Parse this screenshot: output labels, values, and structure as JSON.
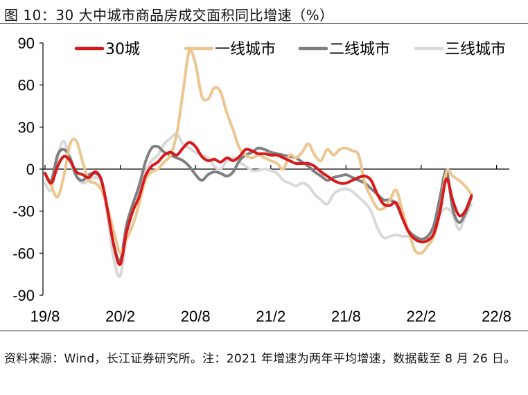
{
  "title": "图 10：30 大中城市商品房成交面积同比增速（%）",
  "source": "资料来源：Wind，长江证券研究所。注：2021 年增速为两年平均增速，数据截至 8 月 26 日。",
  "chart_data": {
    "type": "line",
    "title": "图 10：30 大中城市商品房成交面积同比增速（%）",
    "xlabel": "",
    "ylabel": "",
    "ylim": [
      -90,
      90
    ],
    "yticks": [
      "90",
      "60",
      "30",
      "0",
      "-30",
      "-60",
      "-90"
    ],
    "ytick_values": [
      90,
      60,
      30,
      0,
      -30,
      -60,
      -90
    ],
    "xticks": [
      "19/8",
      "20/2",
      "20/8",
      "21/2",
      "21/8",
      "22/2",
      "22/8"
    ],
    "x_start": "2019-08",
    "x_end": "2022-08",
    "legend_position": "top",
    "grid": false,
    "series": [
      {
        "name": "30城",
        "color": "#d7191c",
        "values": [
          [
            "2019-08",
            -3
          ],
          [
            "2019-08-15",
            -10
          ],
          [
            "2019-09",
            2
          ],
          [
            "2019-09-15",
            9
          ],
          [
            "2019-10",
            6
          ],
          [
            "2019-10-15",
            -2
          ],
          [
            "2019-11",
            -4
          ],
          [
            "2019-11-15",
            -6
          ],
          [
            "2019-12",
            -2
          ],
          [
            "2019-12-15",
            -8
          ],
          [
            "2020-01",
            -30
          ],
          [
            "2020-01-15",
            -55
          ],
          [
            "2020-02",
            -68
          ],
          [
            "2020-02-15",
            -45
          ],
          [
            "2020-03",
            -30
          ],
          [
            "2020-03-15",
            -20
          ],
          [
            "2020-04",
            -5
          ],
          [
            "2020-04-15",
            2
          ],
          [
            "2020-05",
            5
          ],
          [
            "2020-05-15",
            10
          ],
          [
            "2020-06",
            12
          ],
          [
            "2020-06-15",
            10
          ],
          [
            "2020-07",
            15
          ],
          [
            "2020-07-15",
            19
          ],
          [
            "2020-08",
            16
          ],
          [
            "2020-08-15",
            9
          ],
          [
            "2020-09",
            6
          ],
          [
            "2020-09-15",
            7
          ],
          [
            "2020-10",
            5
          ],
          [
            "2020-10-15",
            8
          ],
          [
            "2020-11",
            6
          ],
          [
            "2020-11-15",
            9
          ],
          [
            "2020-12",
            14
          ],
          [
            "2020-12-15",
            13
          ],
          [
            "2021-01",
            11
          ],
          [
            "2021-01-15",
            11
          ],
          [
            "2021-02",
            10
          ],
          [
            "2021-02-15",
            10
          ],
          [
            "2021-03",
            8
          ],
          [
            "2021-03-15",
            6
          ],
          [
            "2021-04",
            4
          ],
          [
            "2021-04-15",
            4
          ],
          [
            "2021-05",
            4
          ],
          [
            "2021-05-15",
            2
          ],
          [
            "2021-06",
            -2
          ],
          [
            "2021-06-15",
            -5
          ],
          [
            "2021-07",
            -8
          ],
          [
            "2021-07-15",
            -10
          ],
          [
            "2021-08",
            -10
          ],
          [
            "2021-08-15",
            -8
          ],
          [
            "2021-09",
            -6
          ],
          [
            "2021-09-15",
            -5
          ],
          [
            "2021-10",
            -8
          ],
          [
            "2021-10-15",
            -18
          ],
          [
            "2021-11",
            -25
          ],
          [
            "2021-11-15",
            -26
          ],
          [
            "2021-12",
            -24
          ],
          [
            "2021-12-15",
            -35
          ],
          [
            "2022-01",
            -45
          ],
          [
            "2022-01-15",
            -50
          ],
          [
            "2022-02",
            -52
          ],
          [
            "2022-02-15",
            -51
          ],
          [
            "2022-03",
            -46
          ],
          [
            "2022-03-15",
            -30
          ],
          [
            "2022-04",
            -7
          ],
          [
            "2022-04-15",
            -22
          ],
          [
            "2022-05",
            -33
          ],
          [
            "2022-05-15",
            -30
          ],
          [
            "2022-06",
            -19
          ]
        ]
      },
      {
        "name": "一线城市",
        "color": "#ecc58f",
        "values": [
          [
            "2019-08",
            -3
          ],
          [
            "2019-08-15",
            -12
          ],
          [
            "2019-09",
            -20
          ],
          [
            "2019-09-15",
            -5
          ],
          [
            "2019-10",
            18
          ],
          [
            "2019-10-15",
            20
          ],
          [
            "2019-11",
            5
          ],
          [
            "2019-11-15",
            -8
          ],
          [
            "2019-12",
            -10
          ],
          [
            "2019-12-15",
            -15
          ],
          [
            "2020-01",
            -28
          ],
          [
            "2020-01-15",
            -45
          ],
          [
            "2020-02",
            -60
          ],
          [
            "2020-02-15",
            -50
          ],
          [
            "2020-03",
            -40
          ],
          [
            "2020-03-15",
            -25
          ],
          [
            "2020-04",
            -8
          ],
          [
            "2020-04-15",
            -2
          ],
          [
            "2020-05",
            0
          ],
          [
            "2020-05-15",
            5
          ],
          [
            "2020-06",
            10
          ],
          [
            "2020-06-15",
            25
          ],
          [
            "2020-07",
            55
          ],
          [
            "2020-07-15",
            84
          ],
          [
            "2020-08",
            75
          ],
          [
            "2020-08-15",
            52
          ],
          [
            "2020-09",
            50
          ],
          [
            "2020-09-15",
            58
          ],
          [
            "2020-10",
            55
          ],
          [
            "2020-10-15",
            40
          ],
          [
            "2020-11",
            28
          ],
          [
            "2020-11-15",
            15
          ],
          [
            "2020-12",
            10
          ],
          [
            "2020-12-15",
            8
          ],
          [
            "2021-01",
            10
          ],
          [
            "2021-01-15",
            8
          ],
          [
            "2021-02",
            6
          ],
          [
            "2021-02-15",
            4
          ],
          [
            "2021-03",
            0
          ],
          [
            "2021-03-15",
            10
          ],
          [
            "2021-04",
            8
          ],
          [
            "2021-04-15",
            12
          ],
          [
            "2021-05",
            18
          ],
          [
            "2021-05-15",
            10
          ],
          [
            "2021-06",
            6
          ],
          [
            "2021-06-15",
            14
          ],
          [
            "2021-07",
            10
          ],
          [
            "2021-07-15",
            14
          ],
          [
            "2021-08",
            15
          ],
          [
            "2021-08-15",
            13
          ],
          [
            "2021-09",
            10
          ],
          [
            "2021-09-15",
            -10
          ],
          [
            "2021-10",
            -20
          ],
          [
            "2021-10-15",
            -28
          ],
          [
            "2021-11",
            -28
          ],
          [
            "2021-11-15",
            -22
          ],
          [
            "2021-12",
            -15
          ],
          [
            "2021-12-15",
            -30
          ],
          [
            "2022-01",
            -45
          ],
          [
            "2022-01-15",
            -58
          ],
          [
            "2022-02",
            -60
          ],
          [
            "2022-02-15",
            -55
          ],
          [
            "2022-03",
            -48
          ],
          [
            "2022-03-15",
            -30
          ],
          [
            "2022-04",
            -2
          ],
          [
            "2022-04-15",
            -5
          ],
          [
            "2022-05",
            -8
          ],
          [
            "2022-05-15",
            -12
          ],
          [
            "2022-06",
            -18
          ]
        ]
      },
      {
        "name": "二线城市",
        "color": "#7f7f7f",
        "values": [
          [
            "2019-08",
            -3
          ],
          [
            "2019-08-15",
            -8
          ],
          [
            "2019-09",
            10
          ],
          [
            "2019-09-15",
            14
          ],
          [
            "2019-10",
            8
          ],
          [
            "2019-10-15",
            -5
          ],
          [
            "2019-11",
            -8
          ],
          [
            "2019-11-15",
            -4
          ],
          [
            "2019-12",
            -3
          ],
          [
            "2019-12-15",
            -8
          ],
          [
            "2020-01",
            -30
          ],
          [
            "2020-01-15",
            -55
          ],
          [
            "2020-02",
            -65
          ],
          [
            "2020-02-15",
            -40
          ],
          [
            "2020-03",
            -25
          ],
          [
            "2020-03-15",
            -12
          ],
          [
            "2020-04",
            5
          ],
          [
            "2020-04-15",
            15
          ],
          [
            "2020-05",
            16
          ],
          [
            "2020-05-15",
            12
          ],
          [
            "2020-06",
            10
          ],
          [
            "2020-06-15",
            8
          ],
          [
            "2020-07",
            6
          ],
          [
            "2020-07-15",
            2
          ],
          [
            "2020-08",
            -4
          ],
          [
            "2020-08-15",
            -8
          ],
          [
            "2020-09",
            -4
          ],
          [
            "2020-09-15",
            -2
          ],
          [
            "2020-10",
            -3
          ],
          [
            "2020-10-15",
            -5
          ],
          [
            "2020-11",
            -2
          ],
          [
            "2020-11-15",
            6
          ],
          [
            "2020-12",
            10
          ],
          [
            "2020-12-15",
            12
          ],
          [
            "2021-01",
            15
          ],
          [
            "2021-01-15",
            14
          ],
          [
            "2021-02",
            12
          ],
          [
            "2021-02-15",
            11
          ],
          [
            "2021-03",
            10
          ],
          [
            "2021-03-15",
            9
          ],
          [
            "2021-04",
            8
          ],
          [
            "2021-04-15",
            5
          ],
          [
            "2021-05",
            2
          ],
          [
            "2021-05-15",
            -2
          ],
          [
            "2021-06",
            -5
          ],
          [
            "2021-06-15",
            -8
          ],
          [
            "2021-07",
            -6
          ],
          [
            "2021-07-15",
            -5
          ],
          [
            "2021-08",
            -4
          ],
          [
            "2021-08-15",
            -6
          ],
          [
            "2021-09",
            -8
          ],
          [
            "2021-09-15",
            -10
          ],
          [
            "2021-10",
            -14
          ],
          [
            "2021-10-15",
            -18
          ],
          [
            "2021-11",
            -22
          ],
          [
            "2021-11-15",
            -22
          ],
          [
            "2021-12",
            -25
          ],
          [
            "2021-12-15",
            -35
          ],
          [
            "2022-01",
            -44
          ],
          [
            "2022-01-15",
            -48
          ],
          [
            "2022-02",
            -50
          ],
          [
            "2022-02-15",
            -48
          ],
          [
            "2022-03",
            -40
          ],
          [
            "2022-03-15",
            -20
          ],
          [
            "2022-04",
            -1
          ],
          [
            "2022-04-15",
            -28
          ],
          [
            "2022-05",
            -38
          ],
          [
            "2022-05-15",
            -32
          ],
          [
            "2022-06",
            -20
          ]
        ]
      },
      {
        "name": "三线城市",
        "color": "#d9d9d9",
        "values": [
          [
            "2019-08",
            -10
          ],
          [
            "2019-08-15",
            -15
          ],
          [
            "2019-09",
            8
          ],
          [
            "2019-09-15",
            20
          ],
          [
            "2019-10",
            5
          ],
          [
            "2019-10-15",
            -5
          ],
          [
            "2019-11",
            -10
          ],
          [
            "2019-11-15",
            -8
          ],
          [
            "2019-12",
            -6
          ],
          [
            "2019-12-15",
            -10
          ],
          [
            "2020-01",
            -35
          ],
          [
            "2020-01-15",
            -65
          ],
          [
            "2020-02",
            -76
          ],
          [
            "2020-02-15",
            -48
          ],
          [
            "2020-03",
            -30
          ],
          [
            "2020-03-15",
            -15
          ],
          [
            "2020-04",
            -2
          ],
          [
            "2020-04-15",
            6
          ],
          [
            "2020-05",
            10
          ],
          [
            "2020-05-15",
            18
          ],
          [
            "2020-06",
            22
          ],
          [
            "2020-06-15",
            25
          ],
          [
            "2020-07",
            18
          ],
          [
            "2020-07-15",
            15
          ],
          [
            "2020-08",
            12
          ],
          [
            "2020-08-15",
            10
          ],
          [
            "2020-09",
            8
          ],
          [
            "2020-09-15",
            2
          ],
          [
            "2020-10",
            0
          ],
          [
            "2020-10-15",
            6
          ],
          [
            "2020-11",
            8
          ],
          [
            "2020-11-15",
            5
          ],
          [
            "2020-12",
            2
          ],
          [
            "2020-12-15",
            -1
          ],
          [
            "2021-01",
            -1
          ],
          [
            "2021-01-15",
            0
          ],
          [
            "2021-02",
            -1
          ],
          [
            "2021-02-15",
            -3
          ],
          [
            "2021-03",
            -8
          ],
          [
            "2021-03-15",
            -10
          ],
          [
            "2021-04",
            -12
          ],
          [
            "2021-04-15",
            -10
          ],
          [
            "2021-05",
            -12
          ],
          [
            "2021-05-15",
            -18
          ],
          [
            "2021-06",
            -22
          ],
          [
            "2021-06-15",
            -25
          ],
          [
            "2021-07",
            -18
          ],
          [
            "2021-07-15",
            -15
          ],
          [
            "2021-08",
            -14
          ],
          [
            "2021-08-15",
            -16
          ],
          [
            "2021-09",
            -20
          ],
          [
            "2021-09-15",
            -24
          ],
          [
            "2021-10",
            -30
          ],
          [
            "2021-10-15",
            -42
          ],
          [
            "2021-11",
            -49
          ],
          [
            "2021-11-15",
            -48
          ],
          [
            "2021-12",
            -47
          ],
          [
            "2021-12-15",
            -48
          ],
          [
            "2022-01",
            -48
          ],
          [
            "2022-01-15",
            -50
          ],
          [
            "2022-02",
            -52
          ],
          [
            "2022-02-15",
            -50
          ],
          [
            "2022-03",
            -42
          ],
          [
            "2022-03-15",
            -32
          ],
          [
            "2022-04",
            -28
          ],
          [
            "2022-04-15",
            -32
          ],
          [
            "2022-05",
            -43
          ],
          [
            "2022-05-15",
            -34
          ],
          [
            "2022-06",
            -25
          ]
        ]
      }
    ]
  }
}
